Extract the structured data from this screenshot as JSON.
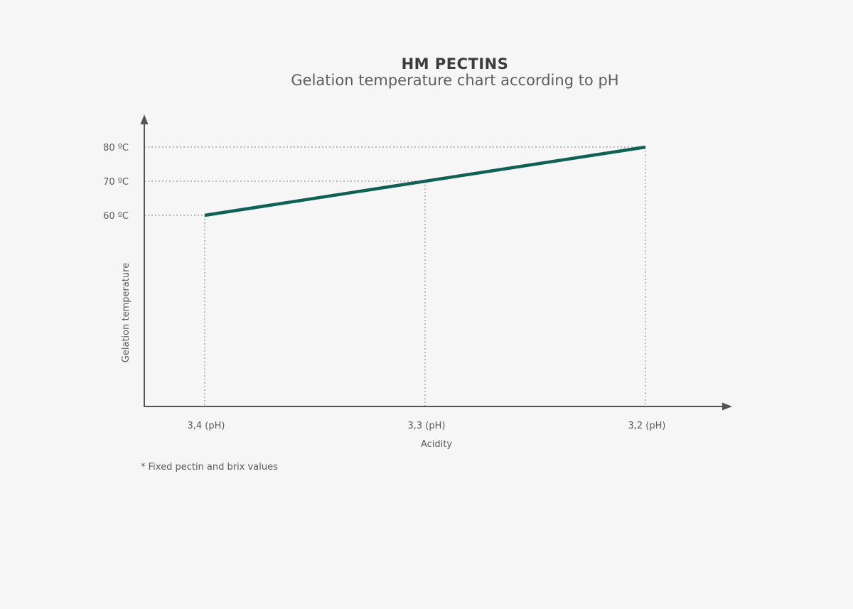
{
  "chart_data": {
    "type": "line",
    "title": "HM PECTINS",
    "subtitle": "Gelation temperature chart according to pH",
    "xlabel": "Acidity",
    "ylabel": "Gelation temperature",
    "x_categories": [
      "3,4 (pH)",
      "3,3 (pH)",
      "3,2 (pH)"
    ],
    "y_ticks": [
      {
        "value": 60,
        "label": "60 ºC"
      },
      {
        "value": 70,
        "label": "70 ºC"
      },
      {
        "value": 80,
        "label": "80 ºC"
      }
    ],
    "series": [
      {
        "values": [
          60,
          70,
          80
        ]
      }
    ],
    "guide_lines": "dotted",
    "line_color": "#0f6157",
    "axis_color": "#555555",
    "footnote": "* Fixed pectin and brix values"
  }
}
